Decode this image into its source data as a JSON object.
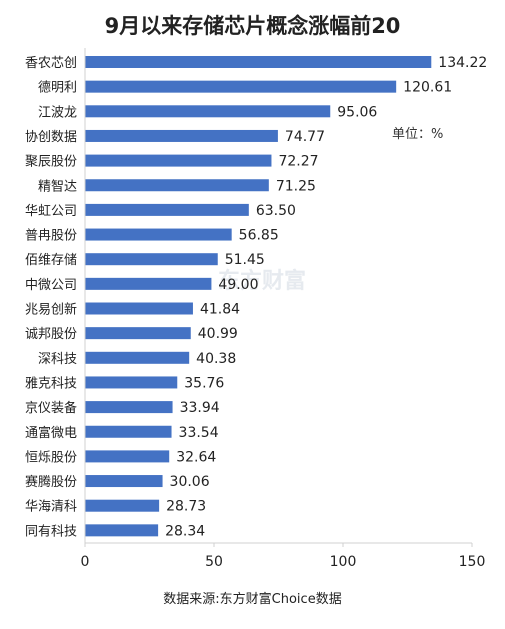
{
  "title": "9月以来存储芯片概念涨幅前20",
  "unit_note": "单位：%",
  "source_note": "数据来源:东方财富Choice数据",
  "watermark": "东方财富",
  "colors": {
    "bar": "#4472c4",
    "axis": "#d0d0d0"
  },
  "chart_data": {
    "type": "bar",
    "orientation": "horizontal",
    "title": "9月以来存储芯片概念涨幅前20",
    "categories": [
      "香农芯创",
      "德明利",
      "江波龙",
      "协创数据",
      "聚辰股份",
      "精智达",
      "华虹公司",
      "普冉股份",
      "佰维存储",
      "中微公司",
      "兆易创新",
      "诚邦股份",
      "深科技",
      "雅克科技",
      "京仪装备",
      "通富微电",
      "恒烁股份",
      "赛腾股份",
      "华海清科",
      "同有科技"
    ],
    "values": [
      134.22,
      120.61,
      95.06,
      74.77,
      72.27,
      71.25,
      63.5,
      56.85,
      51.45,
      49.0,
      41.84,
      40.99,
      40.38,
      35.76,
      33.94,
      33.54,
      32.64,
      30.06,
      28.73,
      28.34
    ],
    "value_labels": [
      "134.22",
      "120.61",
      "95.06",
      "74.77",
      "72.27",
      "71.25",
      "63.50",
      "56.85",
      "51.45",
      "49.00",
      "41.84",
      "40.99",
      "40.38",
      "35.76",
      "33.94",
      "33.54",
      "32.64",
      "30.06",
      "28.73",
      "28.34"
    ],
    "xlim": [
      0,
      150
    ],
    "xticks": [
      "0",
      "50",
      "100",
      "150"
    ],
    "grid": false
  }
}
